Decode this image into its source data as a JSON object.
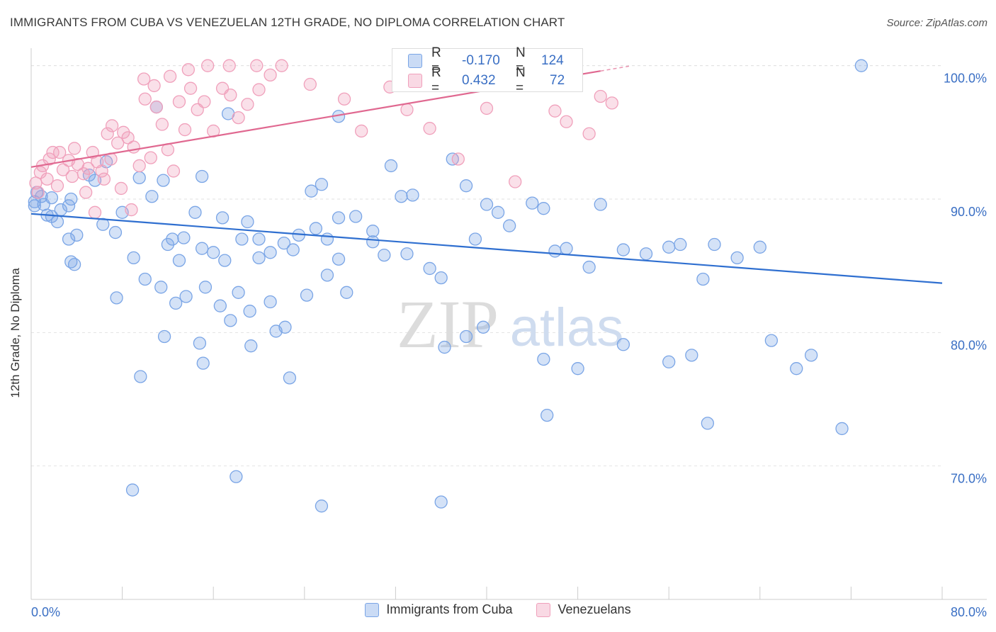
{
  "header": {
    "title": "IMMIGRANTS FROM CUBA VS VENEZUELAN 12TH GRADE, NO DIPLOMA CORRELATION CHART",
    "source": "Source: ZipAtlas.com"
  },
  "watermark": {
    "zip": "ZIP",
    "atlas": "atlas"
  },
  "stats_legend": [
    {
      "r_label": "R =",
      "r_value": "-0.170",
      "n_label": "N =",
      "n_value": "124",
      "color": "#7aa5e6"
    },
    {
      "r_label": "R =",
      "r_value": "0.432",
      "n_label": "N =",
      "n_value": "72",
      "color": "#f0a0bb"
    }
  ],
  "chart_data": {
    "type": "scatter",
    "title": "IMMIGRANTS FROM CUBA VS VENEZUELAN 12TH GRADE, NO DIPLOMA CORRELATION CHART",
    "xlabel": "",
    "ylabel": "12th Grade, No Diploma",
    "xlim": [
      0,
      80
    ],
    "ylim": [
      60,
      102
    ],
    "x_ticks": [
      "0.0%",
      "80.0%"
    ],
    "y_ticks": [
      {
        "value": 70,
        "label": "70.0%"
      },
      {
        "value": 80,
        "label": "80.0%"
      },
      {
        "value": 90,
        "label": "90.0%"
      },
      {
        "value": 100,
        "label": "100.0%"
      }
    ],
    "grid": "horizontal dashed",
    "legend_position": "bottom",
    "series": [
      {
        "name": "Immigrants from Cuba",
        "color": "#7aa5e6",
        "line_color": "#2f6fd0",
        "trend": {
          "x0": 0,
          "y0": 88.9,
          "x1": 80,
          "y1": 83.7
        },
        "points": [
          [
            0.3,
            89.8
          ],
          [
            0.5,
            90.5
          ],
          [
            0.9,
            90.2
          ],
          [
            1.1,
            89.6
          ],
          [
            1.4,
            88.8
          ],
          [
            1.8,
            90.1
          ],
          [
            2.3,
            88.3
          ],
          [
            2.6,
            89.2
          ],
          [
            3.3,
            89.5
          ],
          [
            3.5,
            90.0
          ],
          [
            4.0,
            87.3
          ],
          [
            5.1,
            91.8
          ],
          [
            6.3,
            88.1
          ],
          [
            7.4,
            87.5
          ],
          [
            9.0,
            85.6
          ],
          [
            12.0,
            86.6
          ],
          [
            13.0,
            85.4
          ],
          [
            15.0,
            86.3
          ],
          [
            17.0,
            85.4
          ],
          [
            20.0,
            85.6
          ],
          [
            21.0,
            86.0
          ],
          [
            23.0,
            86.2
          ],
          [
            25.0,
            87.8
          ],
          [
            27.0,
            85.5
          ],
          [
            30.0,
            86.8
          ],
          [
            33.0,
            85.9
          ],
          [
            1.8,
            88.7
          ],
          [
            0.3,
            89.5
          ],
          [
            3.3,
            87.0
          ],
          [
            3.8,
            85.1
          ],
          [
            5.6,
            91.4
          ],
          [
            6.6,
            92.8
          ],
          [
            8.0,
            89.0
          ],
          [
            9.5,
            91.6
          ],
          [
            10.6,
            90.2
          ],
          [
            11.0,
            96.9
          ],
          [
            11.6,
            91.4
          ],
          [
            12.4,
            87.0
          ],
          [
            13.4,
            87.1
          ],
          [
            14.4,
            89.0
          ],
          [
            15.0,
            91.7
          ],
          [
            16.0,
            86.0
          ],
          [
            16.8,
            88.6
          ],
          [
            18.5,
            87.0
          ],
          [
            19.0,
            88.3
          ],
          [
            20.0,
            87.0
          ],
          [
            21.0,
            82.3
          ],
          [
            22.2,
            86.7
          ],
          [
            23.5,
            87.3
          ],
          [
            24.6,
            90.6
          ],
          [
            25.5,
            91.1
          ],
          [
            26.0,
            87.0
          ],
          [
            27.0,
            88.6
          ],
          [
            28.5,
            88.7
          ],
          [
            30.0,
            87.6
          ],
          [
            31.0,
            85.8
          ],
          [
            32.5,
            90.2
          ],
          [
            33.5,
            90.3
          ],
          [
            35.0,
            84.8
          ],
          [
            36.0,
            84.1
          ],
          [
            37.0,
            93.0
          ],
          [
            38.2,
            91.0
          ],
          [
            39.0,
            87.0
          ],
          [
            40.0,
            89.6
          ],
          [
            41.0,
            89.0
          ],
          [
            42.0,
            88.0
          ],
          [
            44.0,
            89.7
          ],
          [
            45.0,
            89.3
          ],
          [
            46.0,
            86.1
          ],
          [
            47.0,
            86.3
          ],
          [
            49.0,
            84.9
          ],
          [
            50.0,
            89.6
          ],
          [
            52.0,
            86.2
          ],
          [
            54.0,
            85.9
          ],
          [
            56.0,
            86.4
          ],
          [
            57.0,
            86.6
          ],
          [
            59.0,
            84.0
          ],
          [
            60.0,
            86.6
          ],
          [
            62.0,
            85.6
          ],
          [
            64.0,
            86.4
          ],
          [
            3.5,
            85.3
          ],
          [
            7.5,
            82.6
          ],
          [
            10.0,
            84.0
          ],
          [
            11.4,
            83.4
          ],
          [
            12.7,
            82.2
          ],
          [
            13.6,
            82.7
          ],
          [
            15.3,
            83.4
          ],
          [
            16.6,
            82.0
          ],
          [
            17.5,
            80.9
          ],
          [
            18.2,
            83.0
          ],
          [
            19.2,
            81.6
          ],
          [
            21.5,
            80.1
          ],
          [
            24.2,
            82.8
          ],
          [
            26.0,
            84.3
          ],
          [
            27.7,
            83.0
          ],
          [
            11.7,
            79.7
          ],
          [
            14.8,
            79.2
          ],
          [
            19.3,
            79.0
          ],
          [
            22.3,
            80.4
          ],
          [
            36.3,
            78.9
          ],
          [
            38.2,
            79.7
          ],
          [
            39.7,
            80.4
          ],
          [
            45.0,
            78.0
          ],
          [
            48.0,
            77.3
          ],
          [
            52.0,
            79.1
          ],
          [
            56.0,
            77.8
          ],
          [
            58.0,
            78.3
          ],
          [
            9.6,
            76.7
          ],
          [
            15.1,
            77.7
          ],
          [
            22.7,
            76.6
          ],
          [
            45.3,
            73.8
          ],
          [
            59.4,
            73.2
          ],
          [
            65.0,
            79.4
          ],
          [
            67.2,
            77.3
          ],
          [
            68.5,
            78.3
          ],
          [
            71.2,
            72.8
          ],
          [
            8.9,
            68.2
          ],
          [
            18.0,
            69.2
          ],
          [
            25.5,
            67.0
          ],
          [
            36.0,
            67.3
          ],
          [
            72.9,
            100.0
          ],
          [
            27.0,
            96.2
          ],
          [
            17.3,
            96.4
          ],
          [
            31.6,
            92.5
          ]
        ]
      },
      {
        "name": "Venezuelans",
        "color": "#f0a0bb",
        "line_color": "#e06890",
        "trend": {
          "x0": 0,
          "y0": 92.4,
          "x1": 50,
          "y1": 99.6
        },
        "points": [
          [
            0.4,
            91.2
          ],
          [
            0.6,
            90.5
          ],
          [
            1.0,
            92.5
          ],
          [
            1.4,
            91.5
          ],
          [
            1.9,
            93.5
          ],
          [
            2.3,
            91.0
          ],
          [
            2.8,
            92.2
          ],
          [
            3.3,
            92.9
          ],
          [
            3.8,
            93.8
          ],
          [
            4.1,
            92.6
          ],
          [
            4.6,
            91.9
          ],
          [
            5.0,
            92.3
          ],
          [
            5.4,
            93.5
          ],
          [
            5.8,
            92.8
          ],
          [
            6.2,
            92.1
          ],
          [
            6.7,
            94.9
          ],
          [
            7.1,
            95.5
          ],
          [
            7.6,
            94.2
          ],
          [
            8.1,
            95.0
          ],
          [
            8.5,
            94.6
          ],
          [
            9.0,
            93.9
          ],
          [
            9.5,
            92.5
          ],
          [
            10.0,
            97.5
          ],
          [
            10.5,
            93.1
          ],
          [
            11.0,
            96.9
          ],
          [
            11.5,
            95.6
          ],
          [
            12.0,
            93.7
          ],
          [
            12.5,
            92.1
          ],
          [
            13.0,
            97.3
          ],
          [
            13.5,
            95.2
          ],
          [
            14.0,
            98.3
          ],
          [
            14.6,
            96.7
          ],
          [
            15.2,
            97.3
          ],
          [
            16.0,
            95.1
          ],
          [
            16.8,
            98.3
          ],
          [
            17.5,
            97.8
          ],
          [
            18.2,
            96.1
          ],
          [
            19.0,
            97.1
          ],
          [
            20.0,
            98.2
          ],
          [
            21.0,
            99.3
          ],
          [
            0.8,
            92.0
          ],
          [
            1.6,
            93.0
          ],
          [
            2.5,
            93.5
          ],
          [
            3.6,
            91.7
          ],
          [
            4.8,
            90.5
          ],
          [
            5.6,
            89.0
          ],
          [
            6.4,
            91.5
          ],
          [
            7.0,
            93.0
          ],
          [
            7.9,
            90.8
          ],
          [
            8.8,
            89.2
          ],
          [
            9.9,
            99.0
          ],
          [
            10.8,
            98.5
          ],
          [
            12.2,
            99.2
          ],
          [
            13.8,
            99.7
          ],
          [
            15.5,
            100.0
          ],
          [
            17.4,
            100.0
          ],
          [
            19.8,
            100.0
          ],
          [
            22.0,
            100.0
          ],
          [
            24.5,
            98.6
          ],
          [
            27.5,
            97.5
          ],
          [
            29.0,
            95.1
          ],
          [
            31.5,
            98.4
          ],
          [
            33.0,
            96.7
          ],
          [
            35.0,
            95.3
          ],
          [
            37.5,
            93.0
          ],
          [
            40.0,
            96.8
          ],
          [
            42.5,
            91.3
          ],
          [
            46.0,
            96.6
          ],
          [
            47.0,
            95.8
          ],
          [
            49.0,
            94.9
          ],
          [
            50.0,
            97.7
          ],
          [
            51.0,
            97.2
          ]
        ]
      }
    ]
  }
}
